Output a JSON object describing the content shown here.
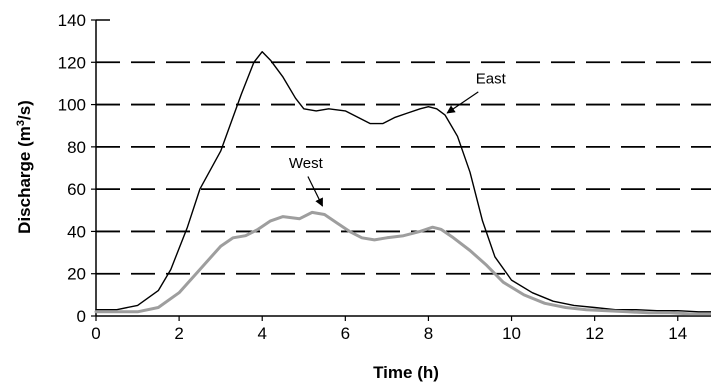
{
  "chart_data": {
    "type": "line",
    "xlabel": "Time (h)",
    "ylabel_main": "Discharge (m",
    "ylabel_sup": "3",
    "ylabel_end": "/s)",
    "xlim": [
      0,
      14.8
    ],
    "ylim": [
      0,
      140
    ],
    "xticks": [
      "0",
      "2",
      "4",
      "6",
      "8",
      "10",
      "12",
      "14"
    ],
    "yticks": [
      "0",
      "20",
      "40",
      "60",
      "80",
      "100",
      "120",
      "140"
    ],
    "grid": "dashed horizontal lines at y = 20, 40, 60, 80, 100, 120",
    "series": [
      {
        "name": "East",
        "color": "#000000",
        "x": [
          0,
          0.5,
          1.0,
          1.5,
          1.8,
          2.2,
          2.5,
          3.0,
          3.5,
          3.8,
          4.0,
          4.2,
          4.5,
          4.8,
          5.0,
          5.3,
          5.6,
          6.0,
          6.3,
          6.6,
          6.9,
          7.2,
          7.5,
          7.8,
          8.0,
          8.2,
          8.4,
          8.7,
          9.0,
          9.3,
          9.6,
          10.0,
          10.5,
          11.0,
          11.5,
          12.0,
          12.5,
          13.0,
          13.5,
          14.0,
          14.5,
          14.8
        ],
        "y": [
          3,
          3,
          5,
          12,
          22,
          42,
          60,
          78,
          105,
          120,
          125,
          121,
          113,
          103,
          98,
          97,
          98,
          97,
          94,
          91,
          91,
          94,
          96,
          98,
          99,
          98,
          95,
          85,
          68,
          45,
          28,
          17,
          11,
          7,
          5,
          4,
          3,
          3,
          2.5,
          2.5,
          2,
          2
        ]
      },
      {
        "name": "West",
        "color": "#9e9e9e",
        "x": [
          0,
          0.5,
          1.0,
          1.5,
          2.0,
          2.5,
          3.0,
          3.3,
          3.6,
          3.9,
          4.2,
          4.5,
          4.9,
          5.2,
          5.5,
          5.8,
          6.1,
          6.4,
          6.7,
          7.0,
          7.4,
          7.8,
          8.1,
          8.3,
          8.6,
          9.0,
          9.4,
          9.8,
          10.3,
          10.8,
          11.3,
          11.8,
          12.3,
          12.8,
          13.3,
          13.8,
          14.3,
          14.8
        ],
        "y": [
          2,
          2,
          2,
          4,
          11,
          22,
          33,
          37,
          38,
          41,
          45,
          47,
          46,
          49,
          48,
          44,
          40,
          37,
          36,
          37,
          38,
          40,
          42,
          41,
          37,
          31,
          24,
          16,
          10,
          6,
          4,
          3,
          2.5,
          2,
          1.5,
          1.5,
          1,
          1
        ]
      }
    ],
    "annotations": [
      {
        "text": "East",
        "label_at": [
          9.5,
          110
        ],
        "arrow_from": [
          9.2,
          106
        ],
        "arrow_to": [
          8.45,
          96
        ]
      },
      {
        "text": "West",
        "label_at": [
          5.05,
          70
        ],
        "arrow_from": [
          5.1,
          66
        ],
        "arrow_to": [
          5.45,
          52
        ]
      }
    ]
  }
}
